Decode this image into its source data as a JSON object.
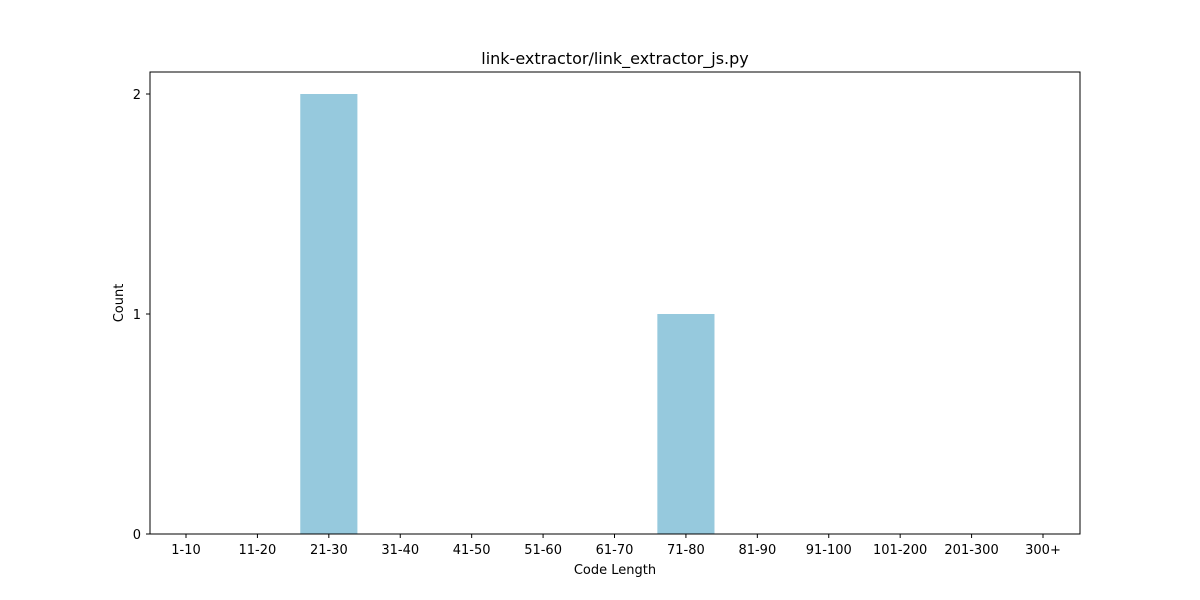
{
  "chart_data": {
    "type": "bar",
    "title": "link-extractor/link_extractor_js.py",
    "xlabel": "Code Length",
    "ylabel": "Count",
    "categories": [
      "1-10",
      "11-20",
      "21-30",
      "31-40",
      "41-50",
      "51-60",
      "61-70",
      "71-80",
      "81-90",
      "91-100",
      "101-200",
      "201-300",
      "300+"
    ],
    "values": [
      0,
      0,
      2,
      0,
      0,
      0,
      0,
      1,
      0,
      0,
      0,
      0,
      0
    ],
    "ylim": [
      0,
      2.1
    ],
    "yticks": [
      "0",
      "1",
      "2"
    ],
    "bar_color": "#96c9dd",
    "grid": false,
    "legend": false
  }
}
